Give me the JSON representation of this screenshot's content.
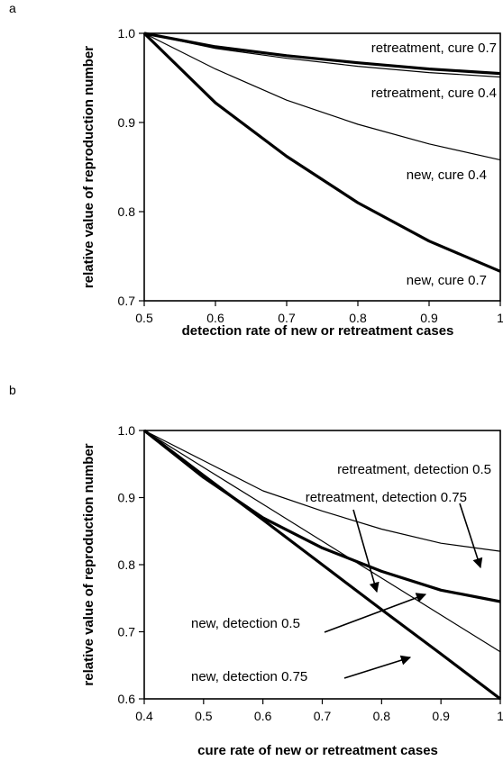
{
  "chart_data": [
    {
      "panel_label": "a",
      "type": "line",
      "xlabel": "detection rate of new or retreatment cases",
      "ylabel": "relative value of reproduction number",
      "xlim": [
        0.5,
        1
      ],
      "ylim": [
        0.7,
        1.0
      ],
      "xticks": [
        "0.5",
        "0.6",
        "0.7",
        "0.8",
        "0.9",
        "1"
      ],
      "yticks": [
        "0.7",
        "0.8",
        "0.9",
        "1.0"
      ],
      "grid": false,
      "series": [
        {
          "name": "retreatment, cure 0.7",
          "weight": "thick",
          "x": [
            0.5,
            0.6,
            0.7,
            0.8,
            0.9,
            1.0
          ],
          "y": [
            1.0,
            0.985,
            0.975,
            0.967,
            0.96,
            0.955
          ]
        },
        {
          "name": "retreatment, cure 0.4",
          "weight": "thin",
          "x": [
            0.5,
            0.6,
            0.7,
            0.8,
            0.9,
            1.0
          ],
          "y": [
            1.0,
            0.983,
            0.972,
            0.963,
            0.956,
            0.951
          ]
        },
        {
          "name": "new, cure 0.4",
          "weight": "thin",
          "x": [
            0.5,
            0.6,
            0.7,
            0.8,
            0.9,
            1.0
          ],
          "y": [
            1.0,
            0.96,
            0.925,
            0.898,
            0.876,
            0.858
          ]
        },
        {
          "name": "new, cure 0.7",
          "weight": "thick",
          "x": [
            0.5,
            0.6,
            0.7,
            0.8,
            0.9,
            1.0
          ],
          "y": [
            1.0,
            0.922,
            0.862,
            0.81,
            0.767,
            0.733
          ]
        }
      ]
    },
    {
      "panel_label": "b",
      "type": "line",
      "xlabel": "cure rate of new or retreatment cases",
      "ylabel": "relative value of reproduction number",
      "xlim": [
        0.4,
        1
      ],
      "ylim": [
        0.6,
        1.0
      ],
      "xticks": [
        "0.4",
        "0.5",
        "0.6",
        "0.7",
        "0.8",
        "0.9",
        "1"
      ],
      "yticks": [
        "0.6",
        "0.7",
        "0.8",
        "0.9",
        "1.0"
      ],
      "grid": false,
      "series": [
        {
          "name": "retreatment, detection 0.5",
          "weight": "thin",
          "x": [
            0.4,
            0.5,
            0.6,
            0.7,
            0.8,
            0.9,
            1.0
          ],
          "y": [
            1.0,
            0.955,
            0.91,
            0.88,
            0.853,
            0.832,
            0.82
          ]
        },
        {
          "name": "retreatment, detection 0.75",
          "weight": "thick",
          "x": [
            0.4,
            0.5,
            0.6,
            0.7,
            0.8,
            0.9,
            1.0
          ],
          "y": [
            1.0,
            0.93,
            0.87,
            0.825,
            0.79,
            0.762,
            0.745
          ]
        },
        {
          "name": "new, detection 0.5",
          "weight": "thin",
          "x": [
            0.4,
            0.5,
            0.6,
            0.7,
            0.8,
            0.9,
            1.0
          ],
          "y": [
            1.0,
            0.945,
            0.89,
            0.835,
            0.78,
            0.725,
            0.67
          ]
        },
        {
          "name": "new, detection 0.75",
          "weight": "thick",
          "x": [
            0.4,
            0.5,
            0.6,
            0.7,
            0.8,
            0.9,
            1.0
          ],
          "y": [
            1.0,
            0.933,
            0.867,
            0.8,
            0.733,
            0.667,
            0.6
          ]
        }
      ]
    }
  ]
}
